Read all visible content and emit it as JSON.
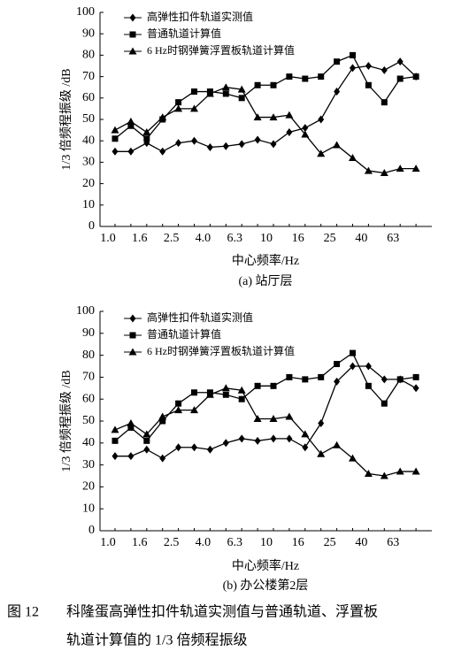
{
  "chart_data": [
    {
      "type": "line",
      "x_label": "中心频率/Hz",
      "y_label": "1/3 倍频程振级 /dB",
      "subtitle": "(a) 站厅层",
      "categories": [
        "1.0",
        null,
        "1.6",
        null,
        "2.5",
        null,
        "4.0",
        null,
        "6.3",
        null,
        "10",
        null,
        "16",
        null,
        "25",
        null,
        "40",
        null,
        "63",
        null
      ],
      "ylim": [
        0,
        100
      ],
      "yticks": [
        0,
        10,
        20,
        30,
        40,
        50,
        60,
        70,
        80,
        90,
        100
      ],
      "grid": false,
      "series": [
        {
          "name": "高弹性扣件轨道实测值",
          "color": "#000000",
          "marker": "diamond",
          "values": [
            35,
            35,
            39,
            35,
            39,
            40,
            37,
            37.5,
            38.5,
            40.5,
            38.5,
            44,
            46,
            50,
            63,
            74,
            75,
            73,
            77,
            70
          ]
        },
        {
          "name": "普通轨道计算值",
          "color": "#000000",
          "marker": "square",
          "values": [
            41,
            47,
            41,
            50,
            58,
            63,
            63,
            62,
            60,
            66,
            66,
            70,
            69,
            70,
            77,
            80,
            66,
            58,
            69,
            70
          ]
        },
        {
          "name": "6 Hz时钢弹簧浮置板轨道计算值",
          "color": "#000000",
          "marker": "triangle",
          "values": [
            45,
            49,
            44,
            51,
            55,
            55,
            62,
            65,
            64,
            51,
            51,
            52,
            43,
            34,
            38,
            32,
            26,
            25,
            27,
            27
          ]
        }
      ]
    },
    {
      "type": "line",
      "x_label": "中心频率/Hz",
      "y_label": "1/3 倍频程振级 /dB",
      "subtitle": "(b) 办公楼第2层",
      "categories": [
        "1.0",
        null,
        "1.6",
        null,
        "2.5",
        null,
        "4.0",
        null,
        "6.3",
        null,
        "10",
        null,
        "16",
        null,
        "25",
        null,
        "40",
        null,
        "63",
        null
      ],
      "ylim": [
        0,
        100
      ],
      "yticks": [
        0,
        10,
        20,
        30,
        40,
        50,
        60,
        70,
        80,
        90,
        100
      ],
      "grid": false,
      "series": [
        {
          "name": "高弹性扣件轨道实测值",
          "color": "#000000",
          "marker": "diamond",
          "values": [
            34,
            34,
            37,
            33,
            38,
            38,
            37,
            40,
            42,
            41,
            42,
            42,
            38,
            49,
            68,
            75,
            75,
            69,
            69,
            65
          ]
        },
        {
          "name": "普通轨道计算值",
          "color": "#000000",
          "marker": "square",
          "values": [
            41,
            47,
            41,
            50,
            58,
            63,
            63,
            62,
            60,
            66,
            66,
            70,
            69,
            70,
            76,
            81,
            66,
            58,
            69,
            70
          ]
        },
        {
          "name": "6 Hz时钢弹簧浮置板轨道计算值",
          "color": "#000000",
          "marker": "triangle",
          "values": [
            46,
            49,
            44,
            52,
            55,
            55,
            62,
            65,
            64,
            51,
            51,
            52,
            44,
            35,
            39,
            33,
            26,
            25,
            27,
            27
          ]
        }
      ]
    }
  ],
  "caption": {
    "label": "图 12",
    "line1": "科隆蛋高弹性扣件轨道实测值与普通轨道、浮置板",
    "line2": "轨道计算值的 1/3 倍频程振级"
  }
}
